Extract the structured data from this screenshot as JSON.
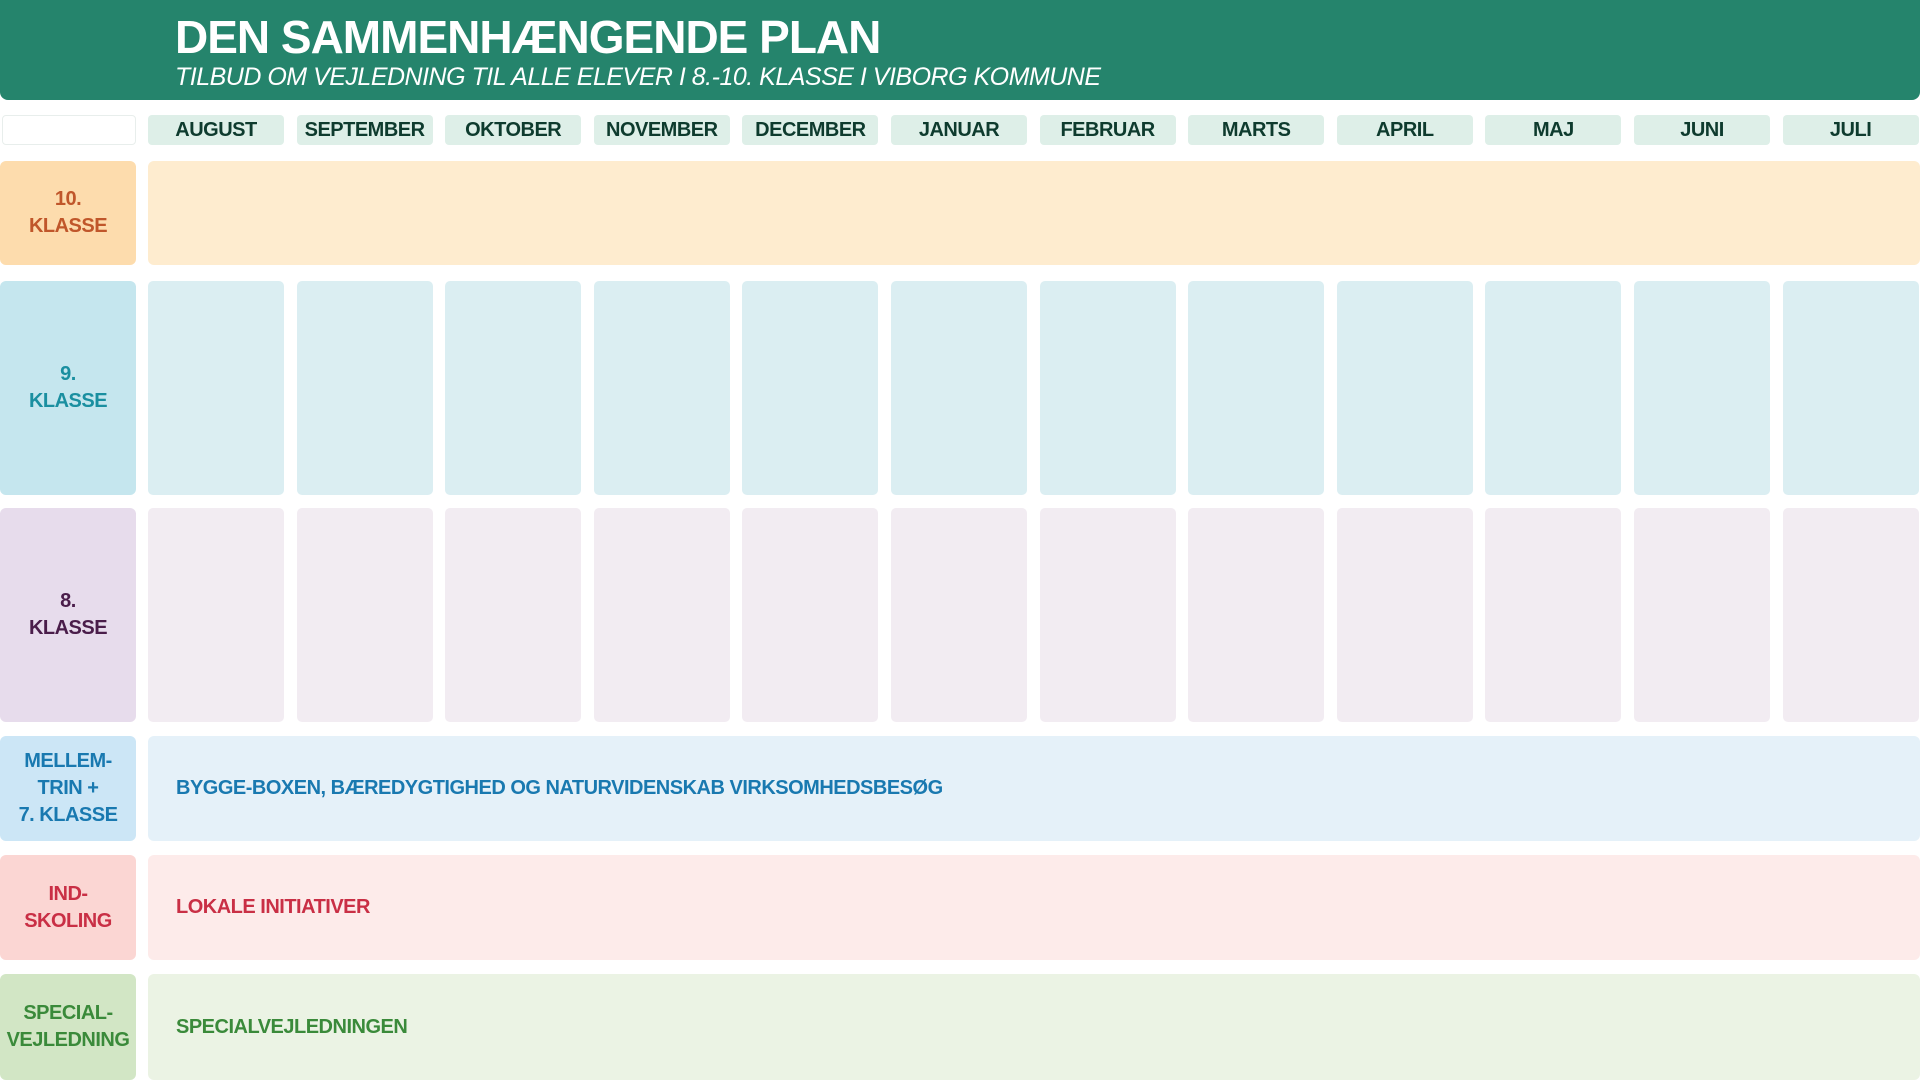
{
  "header": {
    "title": "DEN SAMMENHÆNGENDE PLAN",
    "subtitle": "TILBUD OM VEJLEDNING TIL ALLE ELEVER I 8.-10. KLASSE I VIBORG KOMMUNE"
  },
  "months": [
    "AUGUST",
    "SEPTEMBER",
    "OKTOBER",
    "NOVEMBER",
    "DECEMBER",
    "JANUAR",
    "FEBRUAR",
    "MARTS",
    "APRIL",
    "MAJ",
    "JUNI",
    "JULI"
  ],
  "rows": {
    "klasse10": {
      "label": "10.\nKLASSE",
      "text": "",
      "label_bg": "#fddcad",
      "label_color": "#c0562a",
      "band_bg": "#feeccf"
    },
    "klasse9": {
      "label": "9.\nKLASSE",
      "label_bg": "#c5e6ee",
      "label_color": "#1a8fa0",
      "cell_bg": "#dbeef2"
    },
    "klasse8": {
      "label": "8.\nKLASSE",
      "label_bg": "#e7dcec",
      "label_color": "#4a1d4a",
      "cell_bg": "#f2ecf2"
    },
    "mellemtrin": {
      "label": "MELLEM-\nTRIN +\n7. KLASSE",
      "text": "BYGGE-BOXEN, BÆREDYGTIGHED OG NATURVIDENSKAB VIRKSOMHEDSBESØG",
      "label_bg": "#cce6f6",
      "label_color": "#1979b0",
      "band_bg": "#e5f1f9"
    },
    "indskoling": {
      "label": "IND-\nSKOLING",
      "text": "LOKALE INITIATIVER",
      "label_bg": "#fbd6d3",
      "label_color": "#c92f45",
      "band_bg": "#fdebea"
    },
    "special": {
      "label": "SPECIAL-\nVEJLEDNING",
      "text": "SPECIALVEJLEDNINGEN",
      "label_bg": "#d2e6c5",
      "label_color": "#3a8a3a",
      "band_bg": "#ebf3e4"
    }
  },
  "colors": {
    "header": "#25846c",
    "month_bg": "#deefe8",
    "month_text": "#0e3b2e"
  }
}
